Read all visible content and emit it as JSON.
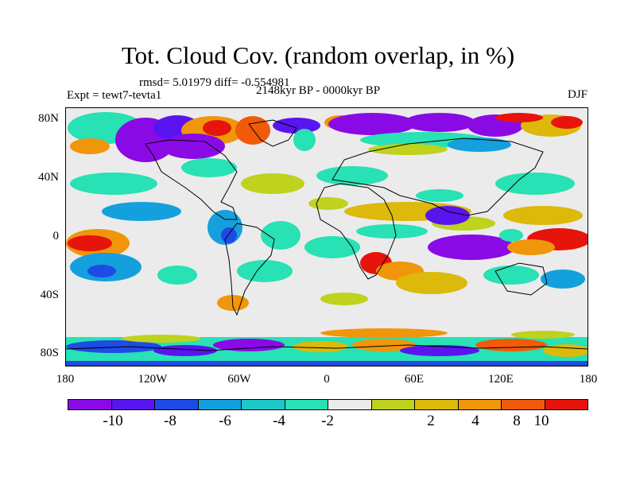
{
  "title": "Tot. Cloud Cov. (random overlap, in %)",
  "stats": "rmsd= 5.01979 diff= -0.554981",
  "expt": "Expt = tewt7-tevta1",
  "period": "2148kyr BP - 0000kyr BP",
  "season": "DJF",
  "lat_labels": [
    "80N",
    "40N",
    "0",
    "40S",
    "80S"
  ],
  "lon_labels": [
    "180",
    "120W",
    "60W",
    "0",
    "60E",
    "120E",
    "180"
  ],
  "colorbar": {
    "colors": [
      "#8a0ae6",
      "#5a14f0",
      "#1e4be6",
      "#14a0dc",
      "#1ec8c8",
      "#28e1b4",
      "#ebebeb",
      "#bed21e",
      "#dcb90a",
      "#f0960a",
      "#f05a0a",
      "#e6140a"
    ],
    "labels": [
      "-10",
      "-8",
      "-6",
      "-4",
      "-2",
      "2",
      "4",
      "8",
      "10"
    ]
  }
}
